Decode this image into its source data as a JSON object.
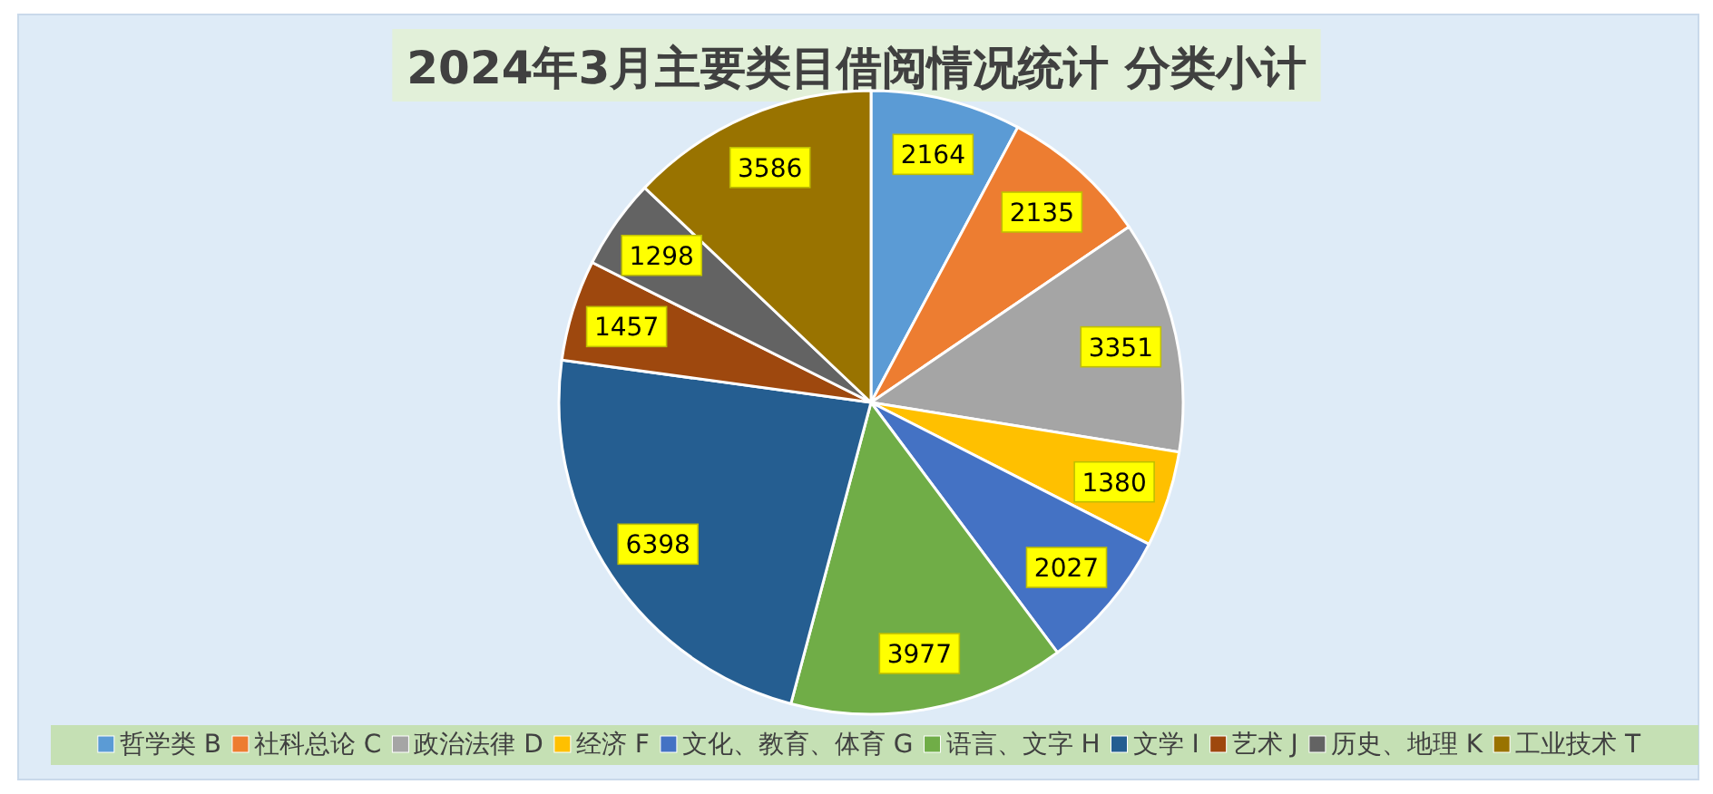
{
  "chart_data": {
    "type": "pie",
    "title": "2024年3月主要类目借阅情况统计 分类小计",
    "categories": [
      "哲学类 B",
      "社科总论 C",
      "政治法律 D",
      "经济 F",
      "文化、教育、体育 G",
      "语言、文字 H",
      "文学 I",
      "艺术 J",
      "历史、地理 K",
      "工业技术 T"
    ],
    "values": [
      2164,
      2135,
      3351,
      1380,
      2027,
      3977,
      6398,
      1457,
      1298,
      3586
    ],
    "colors": [
      "#5b9bd5",
      "#ed7d31",
      "#a5a5a5",
      "#ffc000",
      "#4472c4",
      "#70ad47",
      "#255e91",
      "#9e480e",
      "#636363",
      "#997300"
    ],
    "data_labels": true,
    "legend": "bottom"
  }
}
